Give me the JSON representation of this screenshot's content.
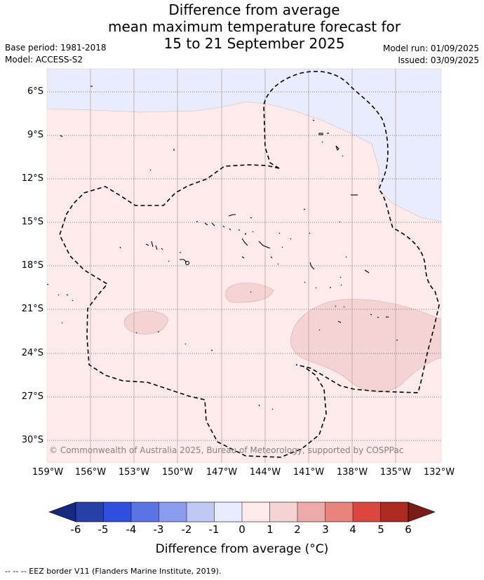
{
  "title": {
    "line1": "Difference from average",
    "line2": "mean maximum temperature forecast for",
    "line3": "15 to 21 September 2025"
  },
  "meta": {
    "base_period": "Base period: 1981-2018",
    "model": "Model: ACCESS-S2",
    "model_run": "Model run: 01/09/2025",
    "issued": "Issued: 03/09/2025"
  },
  "map": {
    "lat_labels": [
      "6°S",
      "9°S",
      "12°S",
      "15°S",
      "18°S",
      "21°S",
      "24°S",
      "27°S",
      "30°S"
    ],
    "lon_labels": [
      "159°W",
      "156°W",
      "153°W",
      "150°W",
      "147°W",
      "144°W",
      "141°W",
      "138°W",
      "135°W",
      "132°W"
    ],
    "copyright": "© Commonwealth of Australia 2025, Bureau of Meteorology, supported by COSPPac"
  },
  "colorbar": {
    "ticks": [
      "-6",
      "-5",
      "-4",
      "-3",
      "-2",
      "-1",
      "0",
      "1",
      "2",
      "3",
      "4",
      "5",
      "6"
    ],
    "colors": [
      "#283ea8",
      "#2f4fe0",
      "#5a74e6",
      "#8a9cee",
      "#c0c8f6",
      "#e9ecfd",
      "#fcebea",
      "#f4d3d3",
      "#eeaaaa",
      "#e8837d",
      "#db463e",
      "#ac2a20"
    ],
    "under_color": "#152a7e",
    "over_color": "#7a1c16",
    "label": "Difference from average (°C)"
  },
  "footer": "--  --  -- EEZ border V11 (Flanders Marine Institute, 2019)."
}
